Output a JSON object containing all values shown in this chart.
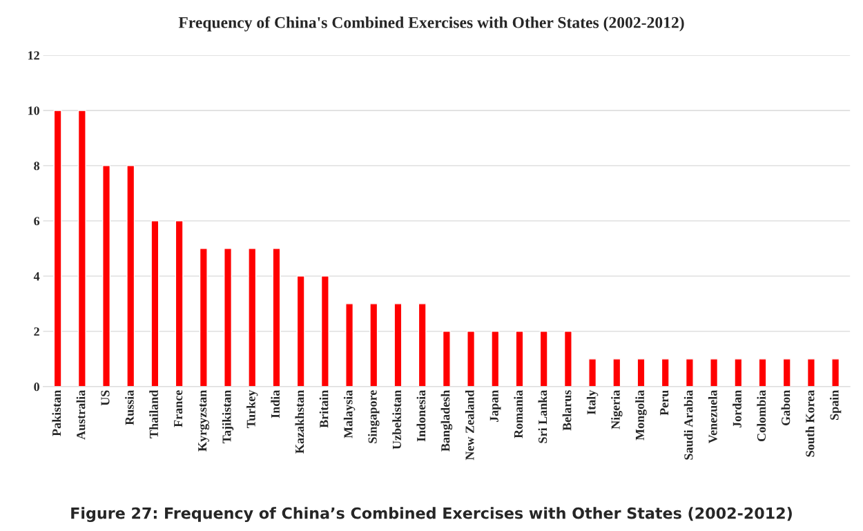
{
  "chart_data": {
    "type": "bar",
    "title": "Frequency of China's Combined Exercises with Other States (2002-2012)",
    "categories": [
      "Pakistan",
      "Australia",
      "US",
      "Russia",
      "Thailand",
      "France",
      "Kyrgyzstan",
      "Tajikistan",
      "Turkey",
      "India",
      "Kazakhstan",
      "Britain",
      "Malaysia",
      "Singapore",
      "Uzbekistan",
      "Indonesia",
      "Bangladesh",
      "New Zealand",
      "Japan",
      "Romania",
      "Sri Lanka",
      "Belarus",
      "Italy",
      "Nigeria",
      "Mongolia",
      "Peru",
      "Saudi Arabia",
      "Venezuela",
      "Jordan",
      "Colombia",
      "Gabon",
      "South Korea",
      "Spain"
    ],
    "values": [
      10,
      10,
      8,
      8,
      6,
      6,
      5,
      5,
      5,
      5,
      4,
      4,
      3,
      3,
      3,
      3,
      2,
      2,
      2,
      2,
      2,
      2,
      1,
      1,
      1,
      1,
      1,
      1,
      1,
      1,
      1,
      1,
      1
    ],
    "color": "#ff0000",
    "ylim": [
      0,
      12
    ],
    "yticks": [
      0,
      2,
      4,
      6,
      8,
      10,
      12
    ],
    "grid": "y",
    "annotations": [
      "Figure 27: Frequency of China’s Combined Exercises with Other States (2002-2012)"
    ]
  }
}
